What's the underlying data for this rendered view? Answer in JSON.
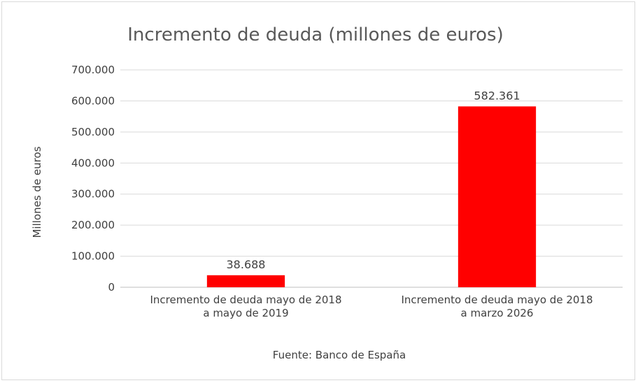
{
  "chart_data": {
    "type": "bar",
    "title": "Incremento de deuda (millones de euros)",
    "ylabel": "Millones de euros",
    "xlabel": "",
    "ylim": [
      0,
      700000
    ],
    "ytick_values": [
      0,
      100000,
      200000,
      300000,
      400000,
      500000,
      600000,
      700000
    ],
    "ytick_labels": [
      "0",
      "100.000",
      "200.000",
      "300.000",
      "400.000",
      "500.000",
      "600.000",
      "700.000"
    ],
    "categories": [
      [
        "Incremento de deuda mayo de 2018",
        "a mayo de 2019"
      ],
      [
        "Incremento de deuda mayo de 2018",
        "a marzo 2026"
      ]
    ],
    "values": [
      38688,
      582361
    ],
    "data_labels": [
      "38.688",
      "582.361"
    ],
    "bar_color": "#ff0000",
    "gridlines": true,
    "legend": "none",
    "source": "Fuente: Banco de España"
  }
}
